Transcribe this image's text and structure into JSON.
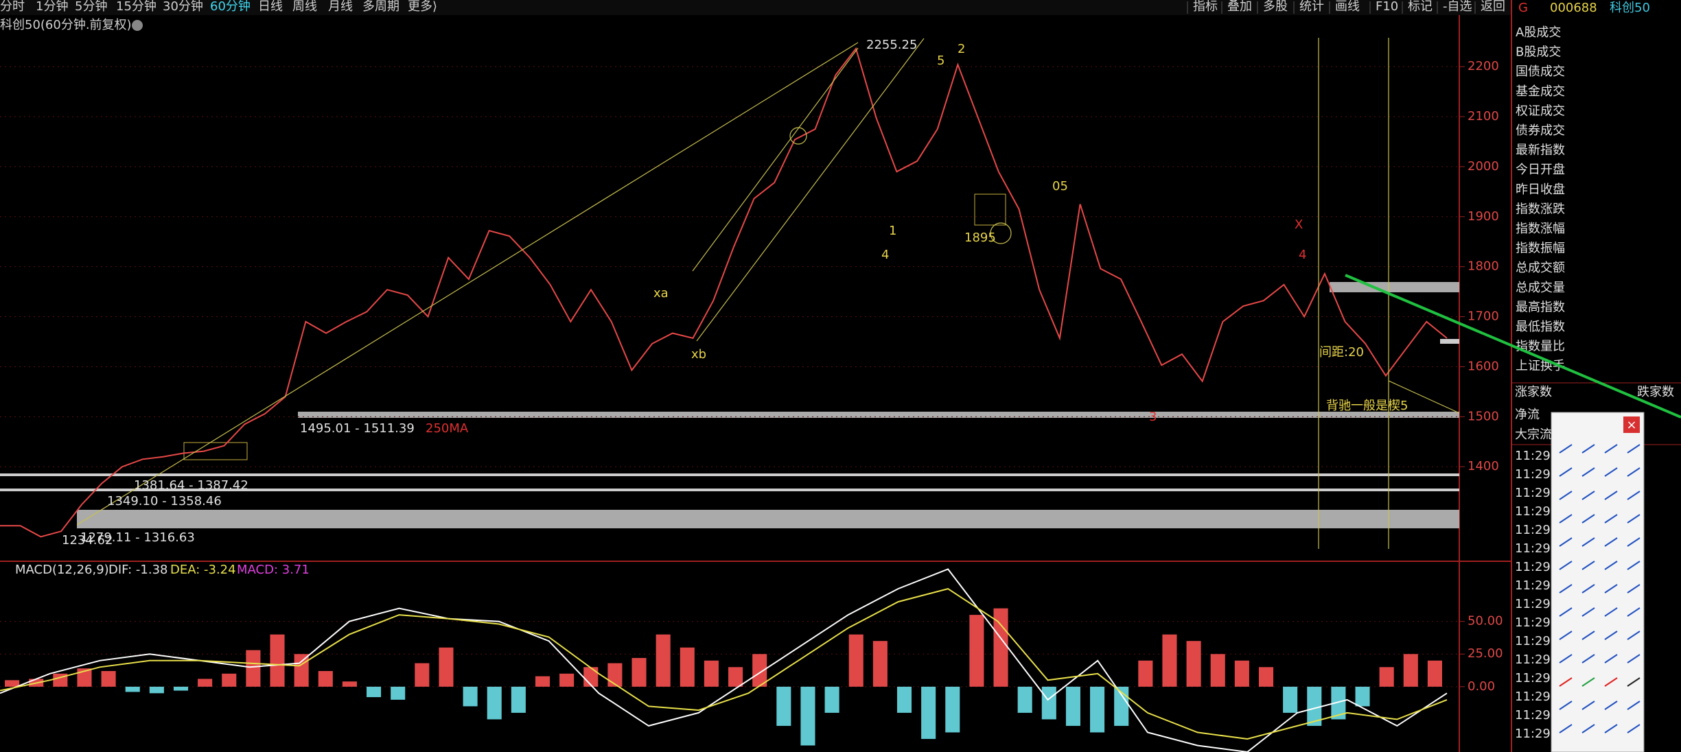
{
  "toolbar": {
    "periods": [
      "分时",
      "1分钟",
      "5分钟",
      "15分钟",
      "30分钟",
      "60分钟",
      "日线",
      "周线",
      "月线",
      "多周期",
      "更多⟩"
    ],
    "active_period": "60分钟",
    "tools": [
      "指标",
      "叠加",
      "多股",
      "统计",
      "画线",
      "F10",
      "标记",
      "-自选",
      "返回"
    ]
  },
  "quote": {
    "market": "G",
    "code": "000688",
    "name": "科创50"
  },
  "chart_title": "科创50(60分钟.前复权)",
  "chart_data": [
    {
      "type": "line",
      "series": [
        {
          "color": "#e84848",
          "values": [
            1282,
            1282,
            1260,
            1271,
            1324,
            1367,
            1400,
            1415,
            1420,
            1427,
            1431,
            1442,
            1485,
            1506,
            1540,
            1690,
            1667,
            1690,
            1710,
            1754,
            1743,
            1700,
            1818,
            1775,
            1872,
            1861,
            1818,
            1764,
            1690,
            1754,
            1690,
            1593,
            1646,
            1667,
            1657,
            1732,
            1839,
            1936,
            1968,
            2054,
            2075,
            2183,
            2236,
            2097,
            1990,
            2011,
            2075,
            2204,
            2097,
            1990,
            1915,
            1754,
            1657,
            1925,
            1796,
            1775,
            1690,
            1603,
            1625,
            1571,
            1690,
            1721,
            1732,
            1764,
            1700,
            1786,
            1690,
            1646,
            1582,
            1636,
            1690,
            1657
          ]
        }
      ],
      "ylim": [
        1211,
        2303
      ],
      "yticks": [
        1400,
        1500,
        1600,
        1700,
        1800,
        1900,
        2000,
        2100,
        2200
      ],
      "grid": true
    },
    {
      "type": "macd",
      "title": "MACD(12,26,9)",
      "series": [
        {
          "name": "DIF: -1.38",
          "color": "#ffffff",
          "values": [
            -5,
            10,
            20,
            25,
            20,
            15,
            18,
            50,
            60,
            52,
            50,
            35,
            -5,
            -30,
            -20,
            5,
            30,
            55,
            75,
            90,
            40,
            -10,
            20,
            -35,
            -45,
            -50,
            -20,
            -10,
            -30,
            -5
          ]
        },
        {
          "name": "DEA: -3.24",
          "color": "#e8e04a",
          "values": [
            -3,
            5,
            15,
            20,
            20,
            18,
            16,
            40,
            55,
            52,
            48,
            38,
            10,
            -15,
            -18,
            -5,
            20,
            45,
            65,
            75,
            50,
            5,
            10,
            -20,
            -35,
            -40,
            -30,
            -20,
            -25,
            -10
          ]
        },
        {
          "name": "MACD: 3.71",
          "color": "#e040e0",
          "values": [
            5,
            6,
            10,
            14,
            12,
            -4,
            -5,
            -3,
            6,
            10,
            28,
            40,
            25,
            12,
            4,
            -8,
            -10,
            18,
            30,
            -15,
            -25,
            -20,
            8,
            10,
            15,
            18,
            22,
            40,
            30,
            20,
            15,
            25,
            -30,
            -45,
            -20,
            40,
            35,
            -20,
            -40,
            -35,
            55,
            60,
            -20,
            -25,
            -30,
            -35,
            -30,
            20,
            40,
            35,
            25,
            20,
            15,
            -20,
            -30,
            -25,
            -15,
            15,
            25,
            20
          ]
        }
      ],
      "hist_colors": [
        "#e04848",
        "#60c8d0"
      ],
      "ylim": [
        -50,
        95
      ],
      "yticks": [
        {
          "value": 50,
          "label": "50.00"
        },
        {
          "value": 25,
          "label": "25.00"
        },
        {
          "value": 0,
          "label": "0.00"
        }
      ]
    }
  ],
  "annotations": {
    "high": "2255.25",
    "w2": "2",
    "w5": "5",
    "w1": "1",
    "w4a": "4",
    "w05": "05",
    "p1895": "1895",
    "x": "X",
    "w4b": "4",
    "w3": "3",
    "xa": "xa",
    "xb": "xb",
    "ma": "250MA",
    "gap": "间距:20",
    "note": "背驰一般是楔5",
    "z1": "1495.01 - 1511.39",
    "z2": "1381.64 - 1387.42",
    "z3": "1349.10 - 1358.46",
    "z4": "1279.11 - 1316.63",
    "low": "1234.62"
  },
  "info_panel": {
    "labels": [
      "A股成交",
      "B股成交",
      "国债成交",
      "基金成交",
      "权证成交",
      "债券成交",
      "最新指数",
      "今日开盘",
      "昨日收盘",
      "指数涨跌",
      "指数涨幅",
      "指数振幅",
      "总成交额",
      "总成交量",
      "最高指数",
      "最低指数",
      "指数量比",
      "上证换手"
    ],
    "up_count": "涨家数",
    "down_count": "跌家数",
    "net_flow": "净流",
    "block_flow": "大宗流",
    "times": [
      "11:29",
      "11:29",
      "11:29",
      "11:29",
      "11:29",
      "11:29",
      "11:29",
      "11:29",
      "11:29",
      "11:29",
      "11:29",
      "11:29",
      "11:29",
      "11:29",
      "11:29",
      "11:29"
    ]
  },
  "palette": {
    "close": "×"
  }
}
